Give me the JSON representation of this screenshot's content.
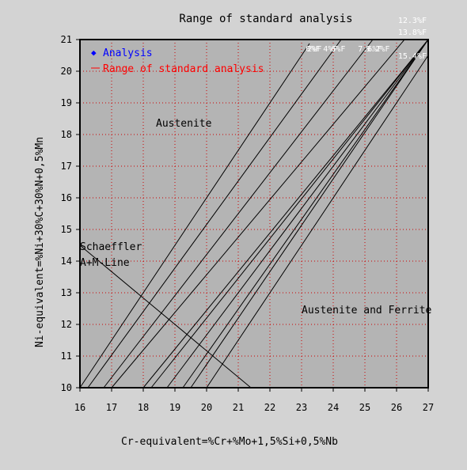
{
  "chart_data": {
    "type": "line",
    "title": "Range of standard analysis",
    "xlabel": "Cr-equivalent=%Cr+%Mo+1,5%Si+0,5%Nb",
    "ylabel": "Ni-equivalent=%Ni+30%C+30%N+0,5%Mn",
    "xlim": [
      16,
      27
    ],
    "ylim": [
      10,
      21
    ],
    "xticks": [
      "16",
      "17",
      "18",
      "19",
      "20",
      "21",
      "22",
      "23",
      "24",
      "25",
      "26",
      "27"
    ],
    "yticks": [
      "10",
      "11",
      "12",
      "13",
      "14",
      "15",
      "16",
      "17",
      "18",
      "19",
      "20",
      "21"
    ],
    "grid": true,
    "legend_position": "top-left",
    "legend": [
      {
        "label": "Analysis",
        "color": "#0000ff",
        "marker": "diamond"
      },
      {
        "label": "Range of standard analysis",
        "color": "#ff0000",
        "marker": "line"
      }
    ],
    "ferrite_lines": [
      {
        "label": "0%F",
        "x0": 16.0,
        "x1": 23.25
      },
      {
        "label": "2%F",
        "x0": 16.25,
        "x1": 24.25
      },
      {
        "label": "4%F",
        "x0": 16.75,
        "x1": 25.25
      },
      {
        "label": "6%F",
        "x0": 17.0,
        "x1": 26.25
      },
      {
        "label": "7.6%F",
        "x0": 18.0,
        "x1": 27.0
      },
      {
        "label": "9.2%F",
        "x0": 18.25,
        "x1": 27.0
      },
      {
        "label": "10.7%F",
        "x0": 18.75,
        "x1": 27.0
      },
      {
        "label": "12.3%F",
        "x0": 19.25,
        "x1": 27.0
      },
      {
        "label": "13.8%F",
        "x0": 19.5,
        "x1": 27.0
      },
      {
        "label": "15.4%F",
        "x0": 20.0,
        "x1": 27.0
      }
    ],
    "ferrite_slope": 1.5,
    "schaeffler_line": {
      "points": [
        [
          16.0,
          14.5
        ],
        [
          21.4,
          10.0
        ]
      ]
    },
    "annotations": [
      {
        "text": "Austenite",
        "x": 18.4,
        "y": 18.25
      },
      {
        "text": "Schaeffler",
        "x": 16.0,
        "y": 14.35
      },
      {
        "text": "A+M-Line",
        "x": 16.0,
        "y": 13.85
      },
      {
        "text": "Austenite and Ferrite",
        "x": 23.0,
        "y": 12.35
      }
    ],
    "colors": {
      "background": "#d3d3d3",
      "plot_area": "#b4b4b4",
      "grid": "#cc0000",
      "curve": "#000000",
      "ferrite_label": "#ffffff"
    }
  }
}
